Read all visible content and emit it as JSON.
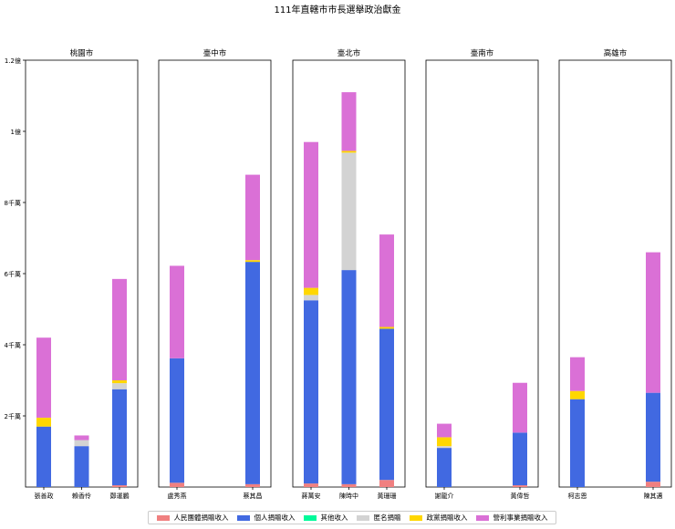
{
  "chart_data": {
    "type": "bar",
    "stacked": true,
    "title": "111年直轄市市長選舉政治獻金",
    "ylim": [
      0,
      120000000
    ],
    "y_ticks": [
      {
        "value": 20000000,
        "label": "2千萬"
      },
      {
        "value": 40000000,
        "label": "4千萬"
      },
      {
        "value": 60000000,
        "label": "6千萬"
      },
      {
        "value": 80000000,
        "label": "8千萬"
      },
      {
        "value": 100000000,
        "label": "1億"
      },
      {
        "value": 120000000,
        "label": "1.2億"
      }
    ],
    "series_names": [
      "人民團體捐贈收入",
      "個人捐贈收入",
      "其他收入",
      "匿名捐贈",
      "政黨捐贈收入",
      "營利事業捐贈收入"
    ],
    "colors": [
      "#f08080",
      "#4169e1",
      "#00fa9a",
      "#d3d3d3",
      "#ffd700",
      "#da70d6"
    ],
    "legend_position": "bottom-center",
    "panels": [
      {
        "city": "桃園市",
        "candidates": [
          {
            "name": "張善政",
            "values": [
              0,
              17000000,
              0,
              0,
              2500000,
              22500000
            ]
          },
          {
            "name": "賴香伶",
            "values": [
              0,
              11500000,
              0,
              1700000,
              0,
              1300000
            ]
          },
          {
            "name": "鄭運鵬",
            "values": [
              500000,
              27000000,
              0,
              1700000,
              800000,
              28500000
            ]
          }
        ]
      },
      {
        "city": "臺中市",
        "candidates": [
          {
            "name": "盧秀燕",
            "values": [
              1200000,
              35000000,
              0,
              0,
              0,
              26000000
            ]
          },
          {
            "name": "蔡其昌",
            "values": [
              800000,
              62500000,
              0,
              0,
              500000,
              24000000
            ]
          }
        ]
      },
      {
        "city": "臺北市",
        "candidates": [
          {
            "name": "蔣萬安",
            "values": [
              1000000,
              51500000,
              0,
              1500000,
              2000000,
              41000000
            ]
          },
          {
            "name": "陳時中",
            "values": [
              800000,
              60200000,
              0,
              33000000,
              500000,
              16500000
            ]
          },
          {
            "name": "黃珊珊",
            "values": [
              2000000,
              42500000,
              0,
              0,
              500000,
              26000000
            ]
          }
        ]
      },
      {
        "city": "臺南市",
        "candidates": [
          {
            "name": "謝龍介",
            "values": [
              0,
              11000000,
              0,
              500000,
              2500000,
              3800000
            ]
          },
          {
            "name": "黃偉哲",
            "values": [
              500000,
              14800000,
              0,
              0,
              0,
              14000000
            ]
          }
        ]
      },
      {
        "city": "高雄市",
        "candidates": [
          {
            "name": "柯志恩",
            "values": [
              0,
              24700000,
              0,
              0,
              2300000,
              9500000
            ]
          },
          {
            "name": "陳其邁",
            "values": [
              1500000,
              25000000,
              0,
              0,
              0,
              39500000
            ]
          }
        ]
      }
    ]
  }
}
